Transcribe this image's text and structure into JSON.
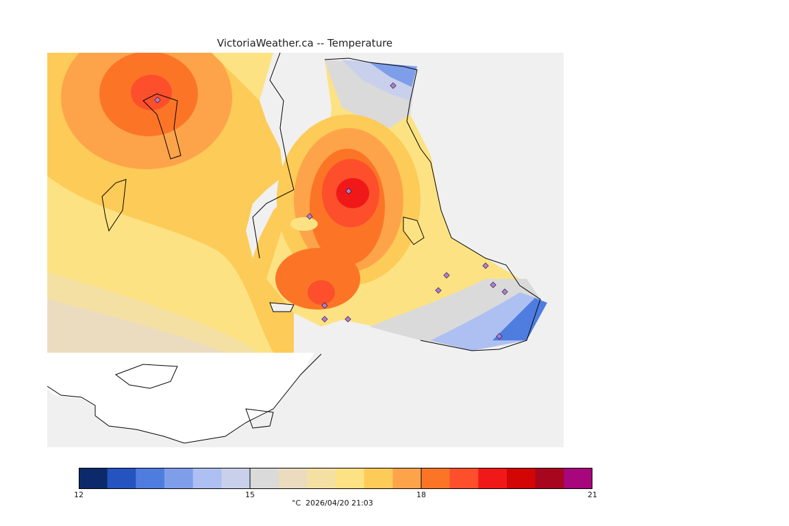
{
  "title": "VictoriaWeather.ca -- Temperature",
  "legend": {
    "min": 12,
    "max": 21,
    "ticks": [
      "12",
      "15",
      "18",
      "21"
    ],
    "tick_values": [
      12,
      15,
      18,
      21
    ],
    "colors": [
      "#0c2a6a",
      "#2553bf",
      "#4f7ddf",
      "#7f9eea",
      "#aebff2",
      "#c9d0ec",
      "#dadada",
      "#ebdcbf",
      "#f5e0a3",
      "#fde283",
      "#fdcb57",
      "#fda44b",
      "#fc7527",
      "#fd4f2c",
      "#f01818",
      "#d30505",
      "#a8061f",
      "#a7067c"
    ],
    "caption": "°C  2026/04/20 21:03"
  },
  "map": {
    "background": "#f0f0f0",
    "station_marker_color": "#b07bd8"
  }
}
